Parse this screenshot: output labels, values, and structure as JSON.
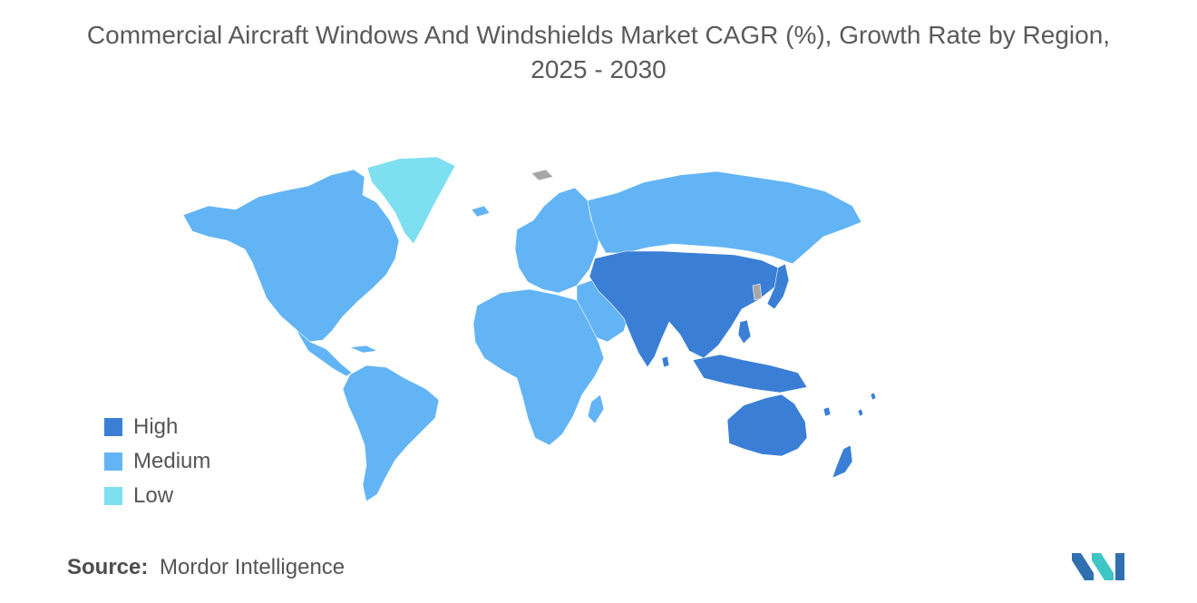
{
  "title_line1": "Commercial Aircraft Windows And Windshields Market CAGR (%), Growth Rate by Region,",
  "title_line2": "2025 - 2030",
  "colors": {
    "high": "#3a7fd5",
    "medium": "#62b4f5",
    "low": "#7ddff0",
    "no_data": "#a7a7a7"
  },
  "legend": [
    {
      "label": "High",
      "level": "high"
    },
    {
      "label": "Medium",
      "level": "medium"
    },
    {
      "label": "Low",
      "level": "low"
    }
  ],
  "regions": [
    {
      "region": "North America",
      "level": "medium"
    },
    {
      "region": "Greenland",
      "level": "low"
    },
    {
      "region": "South America",
      "level": "medium"
    },
    {
      "region": "Europe",
      "level": "medium"
    },
    {
      "region": "Russia",
      "level": "medium"
    },
    {
      "region": "Middle East",
      "level": "medium"
    },
    {
      "region": "Africa",
      "level": "medium"
    },
    {
      "region": "Asia-Pacific",
      "level": "high"
    },
    {
      "region": "Australia & New Zealand",
      "level": "high"
    }
  ],
  "source_label": "Source:",
  "source_value": "Mordor Intelligence"
}
